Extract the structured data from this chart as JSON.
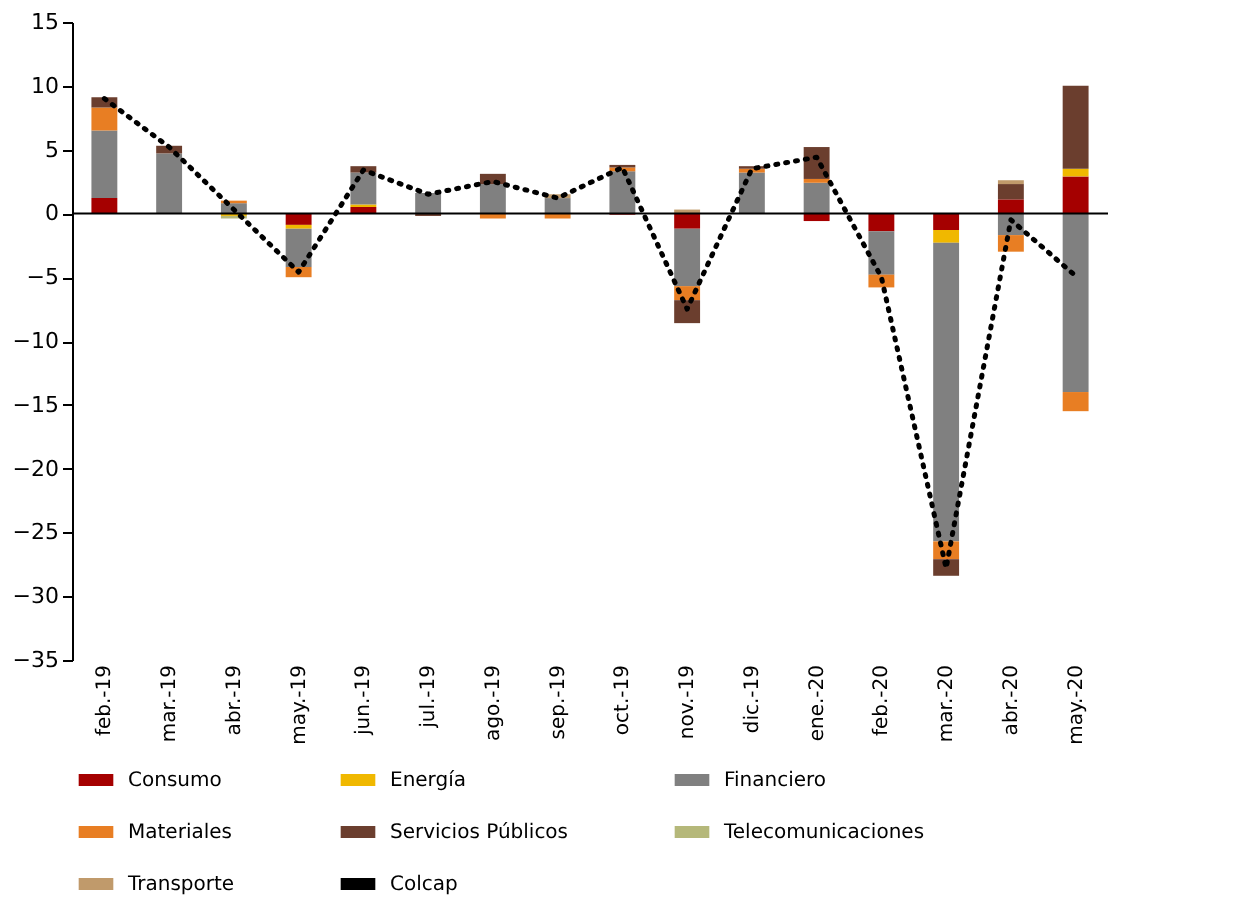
{
  "chart_data": {
    "type": "bar",
    "stacked": true,
    "categories": [
      "feb.-19",
      "mar.-19",
      "abr.-19",
      "may.-19",
      "jun.-19",
      "jul.-19",
      "ago.-19",
      "sep.-19",
      "oct.-19",
      "nov.-19",
      "dic.-19",
      "ene.-20",
      "feb.-20",
      "mar.-20",
      "abr.-20",
      "may.-20"
    ],
    "series": [
      {
        "name": "Consumo",
        "color": "#a50000",
        "values": [
          1.2,
          0,
          null,
          -0.9,
          0.5,
          0,
          0,
          0,
          -0.1,
          -1.2,
          0,
          -0.6,
          -1.4,
          -1.3,
          1.1,
          2.9
        ]
      },
      {
        "name": "Energía",
        "color": "#f0b800",
        "values": [
          0,
          null,
          -0.2,
          -0.3,
          0.2,
          0,
          0,
          0,
          0,
          0,
          0,
          0,
          0,
          -1.0,
          0,
          0.6
        ]
      },
      {
        "name": "Financiero",
        "color": "#808080",
        "values": [
          5.3,
          4.7,
          0.8,
          -3.0,
          2.5,
          1.6,
          2.3,
          1.2,
          3.3,
          -4.5,
          3.2,
          2.4,
          -3.4,
          -23.4,
          -1.7,
          -14.0
        ]
      },
      {
        "name": "Materiales",
        "color": "#e87e23",
        "values": [
          1.8,
          0,
          0.2,
          -0.8,
          0,
          0,
          -0.4,
          -0.4,
          0.3,
          -1.1,
          0.3,
          0.3,
          -1.0,
          -1.4,
          -1.3,
          -1.5
        ]
      },
      {
        "name": "Servicios Públicos",
        "color": "#6b3e2e",
        "values": [
          0.8,
          0.6,
          0,
          null,
          0.5,
          -0.2,
          0.8,
          0,
          0.2,
          -1.8,
          0.2,
          2.5,
          0,
          -1.3,
          1.2,
          6.5
        ]
      },
      {
        "name": "Telecomunicaciones",
        "color": "#b5b87a",
        "values": [
          0,
          0,
          -0.2,
          0,
          0,
          0,
          0,
          0,
          0,
          0,
          0,
          0,
          0,
          0,
          0,
          0
        ]
      },
      {
        "name": "Transporte",
        "color": "#c09a6b",
        "values": [
          0,
          0,
          0,
          0,
          0,
          0,
          0,
          0.3,
          0,
          0.3,
          0,
          0,
          0,
          0,
          0.3,
          0
        ]
      },
      {
        "name": "Colcap",
        "type": "line",
        "color": "#000000",
        "line_style": "dotted",
        "values": [
          9.0,
          5.2,
          0.3,
          -4.6,
          3.4,
          1.5,
          2.5,
          1.2,
          3.6,
          -7.5,
          3.5,
          4.4,
          -5.0,
          -27.8,
          -0.5,
          -4.9
        ]
      }
    ],
    "ylim": [
      -35,
      15
    ],
    "yticks": [
      -35,
      -30,
      -25,
      -20,
      -15,
      -10,
      -5,
      0,
      5,
      10,
      15
    ],
    "ref_lines": [
      {
        "axis": "y",
        "value": 0
      }
    ],
    "grid": false,
    "legend": "bottom"
  }
}
